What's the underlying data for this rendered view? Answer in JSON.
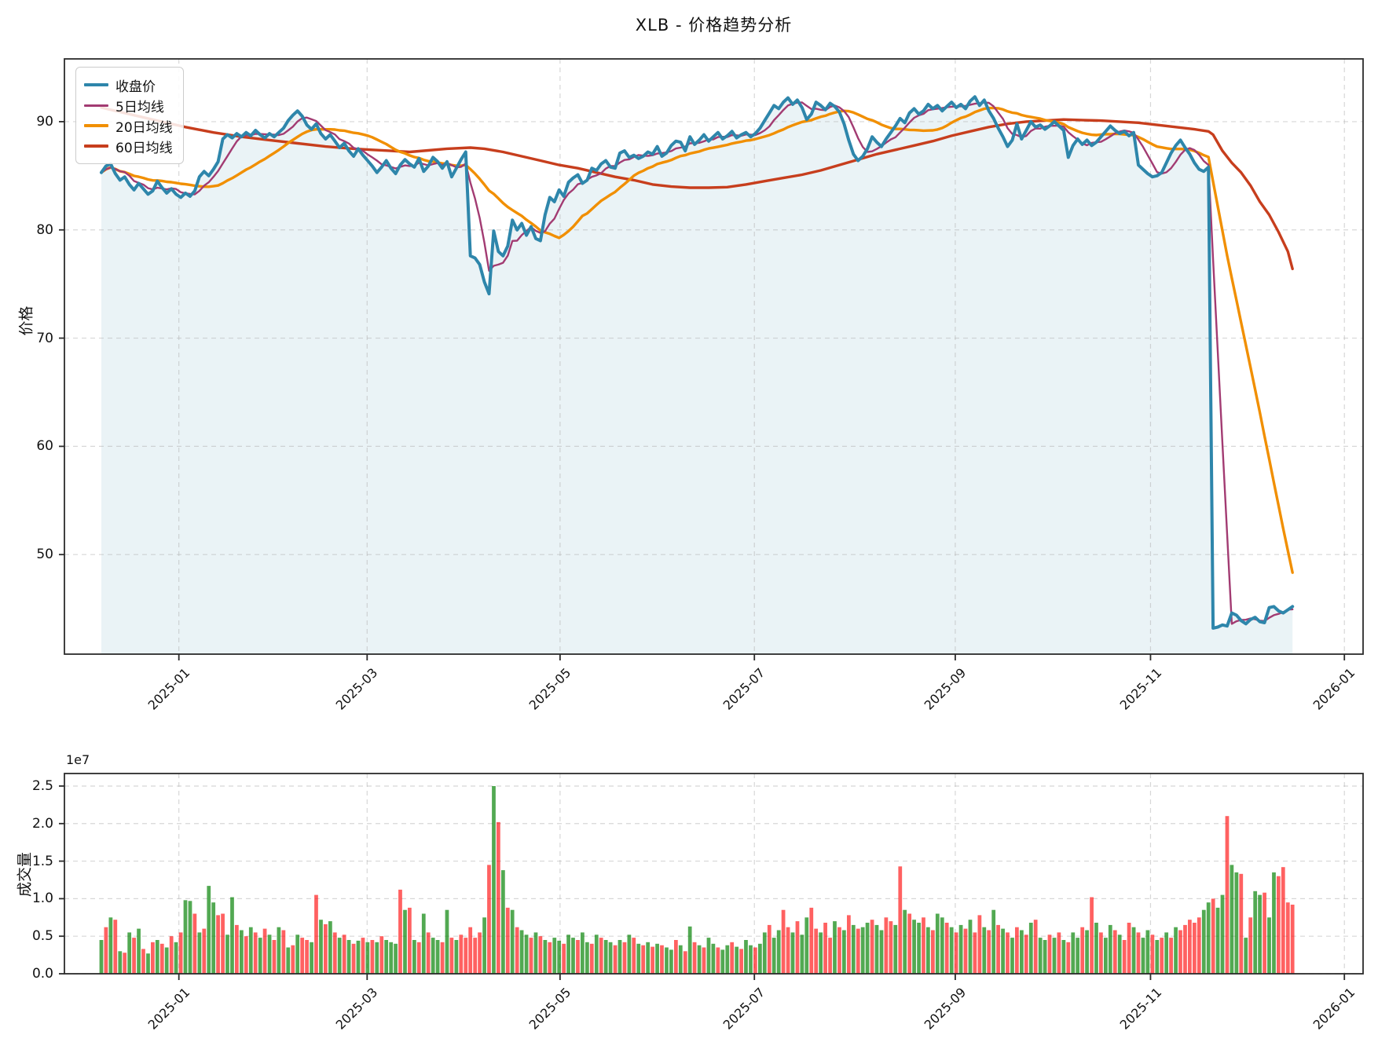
{
  "title": "XLB - 价格趋势分析",
  "price_panel": {
    "ylabel": "价格",
    "ytick_labels": [
      "50",
      "60",
      "70",
      "80",
      "90"
    ],
    "ytick_values": [
      50,
      60,
      70,
      80,
      90
    ],
    "legend": [
      {
        "label": "收盘价",
        "color": "#2E86AB",
        "line_width": 4
      },
      {
        "label": "5日均线",
        "color": "#A23B72",
        "line_width": 2.4
      },
      {
        "label": "20日均线",
        "color": "#F18F01",
        "line_width": 3.4
      },
      {
        "label": "60日均线",
        "color": "#C73E1D",
        "line_width": 3.4
      }
    ]
  },
  "volume_panel": {
    "ylabel": "成交量",
    "offset_label": "1e7",
    "ytick_labels": [
      "0.0",
      "0.5",
      "1.0",
      "1.5",
      "2.0",
      "2.5"
    ],
    "ytick_values": [
      0,
      0.5,
      1.0,
      1.5,
      2.0,
      2.5
    ]
  },
  "x_axis": {
    "ticks": [
      {
        "label": "2025-01",
        "i": 16.6
      },
      {
        "label": "2025-03",
        "i": 56.9
      },
      {
        "label": "2025-05",
        "i": 98.2
      },
      {
        "label": "2025-07",
        "i": 139.8
      },
      {
        "label": "2025-09",
        "i": 182.8
      },
      {
        "label": "2025-11",
        "i": 224.6
      },
      {
        "label": "2026-01",
        "i": 266.1
      }
    ]
  },
  "chart_data": {
    "type": "line+bar",
    "title": "XLB - 价格趋势分析",
    "x_unit": "trading_day_index",
    "xlim": [
      -7.9,
      270.1
    ],
    "price_ylim": [
      40.8,
      95.8
    ],
    "volume_ylim_1e7": [
      0,
      2.667
    ],
    "grid": "dashed",
    "legend_position": "upper-left",
    "fill_under_close": "rgba(46,134,171,0.10)",
    "volume_colors": {
      "up": "rgba(0,128,0,0.68)",
      "down": "rgba(255,0,0,0.62)"
    },
    "close": [
      85.3,
      85.9,
      86.1,
      85.2,
      84.6,
      84.9,
      84.2,
      83.7,
      84.3,
      83.8,
      83.3,
      83.6,
      84.5,
      83.9,
      83.4,
      83.8,
      83.3,
      83.0,
      83.4,
      83.1,
      83.6,
      84.9,
      85.4,
      85.0,
      85.6,
      86.3,
      88.4,
      88.8,
      88.5,
      88.9,
      88.6,
      89.0,
      88.7,
      89.2,
      88.8,
      88.5,
      88.9,
      88.6,
      89.0,
      89.4,
      90.1,
      90.6,
      91.0,
      90.5,
      89.7,
      89.3,
      89.8,
      88.9,
      88.4,
      88.8,
      88.2,
      87.6,
      88.0,
      87.3,
      86.8,
      87.5,
      86.9,
      86.4,
      85.9,
      85.3,
      85.8,
      86.4,
      85.7,
      85.2,
      86.0,
      86.5,
      86.1,
      85.8,
      86.6,
      85.4,
      85.9,
      86.7,
      86.3,
      85.7,
      86.3,
      84.9,
      85.7,
      86.5,
      87.2,
      77.6,
      77.4,
      76.8,
      75.2,
      74.1,
      79.9,
      78.0,
      77.6,
      78.5,
      80.9,
      80.0,
      80.6,
      79.5,
      80.3,
      79.2,
      79.0,
      81.4,
      83.0,
      82.6,
      83.7,
      83.1,
      84.4,
      84.8,
      85.1,
      84.3,
      84.6,
      85.7,
      85.5,
      86.1,
      86.4,
      85.8,
      85.7,
      87.1,
      87.3,
      86.7,
      86.9,
      86.6,
      86.8,
      87.2,
      87.0,
      87.7,
      86.8,
      87.1,
      87.8,
      88.2,
      88.1,
      87.3,
      88.6,
      87.9,
      88.3,
      88.8,
      88.2,
      88.6,
      89.0,
      88.4,
      88.7,
      89.1,
      88.5,
      88.8,
      89.0,
      88.6,
      88.9,
      89.4,
      90.1,
      90.8,
      91.5,
      91.2,
      91.8,
      92.2,
      91.6,
      92.0,
      91.3,
      90.2,
      90.7,
      91.8,
      91.5,
      91.1,
      91.7,
      91.4,
      90.9,
      89.8,
      88.3,
      87.0,
      86.4,
      86.8,
      87.5,
      88.6,
      88.1,
      87.7,
      88.4,
      89.0,
      89.6,
      90.3,
      89.9,
      90.8,
      91.2,
      90.7,
      91.0,
      91.6,
      91.2,
      91.5,
      91.0,
      91.4,
      91.8,
      91.3,
      91.6,
      91.2,
      91.9,
      92.3,
      91.5,
      92.0,
      91.0,
      90.3,
      89.4,
      88.6,
      87.7,
      88.3,
      89.8,
      88.4,
      89.2,
      90.0,
      89.5,
      89.7,
      89.3,
      89.6,
      90.0,
      89.6,
      89.2,
      86.7,
      87.8,
      88.4,
      87.9,
      88.3,
      87.8,
      88.1,
      88.6,
      89.1,
      89.6,
      89.2,
      88.9,
      89.1,
      88.7,
      89.0,
      86.0,
      85.6,
      85.2,
      84.9,
      85.0,
      85.3,
      86.2,
      87.1,
      87.8,
      88.3,
      87.6,
      87.0,
      86.2,
      85.6,
      85.4,
      85.8,
      43.2,
      43.3,
      43.5,
      43.4,
      44.6,
      44.4,
      43.9,
      43.6,
      44.0,
      44.2,
      43.8,
      43.7,
      45.1,
      45.2,
      44.8,
      44.6,
      44.9,
      45.2
    ],
    "ma5_window": 5,
    "ma20_window": 20,
    "ma60_points": [
      [
        0,
        91.3
      ],
      [
        6,
        90.7
      ],
      [
        12,
        90.1
      ],
      [
        18,
        89.5
      ],
      [
        24,
        89.0
      ],
      [
        30,
        88.6
      ],
      [
        36,
        88.3
      ],
      [
        42,
        88.0
      ],
      [
        48,
        87.7
      ],
      [
        54,
        87.5
      ],
      [
        58,
        87.4
      ],
      [
        62,
        87.3
      ],
      [
        66,
        87.2
      ],
      [
        70,
        87.35
      ],
      [
        74,
        87.5
      ],
      [
        79,
        87.6
      ],
      [
        82,
        87.5
      ],
      [
        86,
        87.2
      ],
      [
        90,
        86.8
      ],
      [
        94,
        86.4
      ],
      [
        98,
        86.0
      ],
      [
        102,
        85.7
      ],
      [
        106,
        85.3
      ],
      [
        110,
        84.9
      ],
      [
        114,
        84.6
      ],
      [
        118,
        84.2
      ],
      [
        122,
        84.0
      ],
      [
        126,
        83.9
      ],
      [
        130,
        83.9
      ],
      [
        134,
        83.95
      ],
      [
        138,
        84.2
      ],
      [
        142,
        84.5
      ],
      [
        146,
        84.8
      ],
      [
        150,
        85.1
      ],
      [
        154,
        85.5
      ],
      [
        158,
        86.0
      ],
      [
        162,
        86.5
      ],
      [
        166,
        87.0
      ],
      [
        170,
        87.4
      ],
      [
        174,
        87.8
      ],
      [
        178,
        88.2
      ],
      [
        182,
        88.7
      ],
      [
        186,
        89.1
      ],
      [
        190,
        89.5
      ],
      [
        194,
        89.8
      ],
      [
        198,
        90.0
      ],
      [
        202,
        90.1
      ],
      [
        206,
        90.2
      ],
      [
        210,
        90.15
      ],
      [
        214,
        90.1
      ],
      [
        218,
        90.0
      ],
      [
        222,
        89.9
      ],
      [
        226,
        89.7
      ],
      [
        230,
        89.5
      ],
      [
        234,
        89.3
      ],
      [
        237,
        89.1
      ],
      [
        238,
        88.8
      ],
      [
        240,
        87.3
      ],
      [
        242,
        86.2
      ],
      [
        244,
        85.3
      ],
      [
        246,
        84.1
      ],
      [
        248,
        82.6
      ],
      [
        250,
        81.4
      ],
      [
        252,
        79.8
      ],
      [
        254,
        78.0
      ],
      [
        255,
        76.4
      ]
    ],
    "volume_1e7": [
      0.45,
      0.62,
      0.75,
      0.72,
      0.3,
      0.28,
      0.55,
      0.48,
      0.6,
      0.33,
      0.27,
      0.42,
      0.45,
      0.4,
      0.35,
      0.5,
      0.42,
      0.55,
      0.98,
      0.97,
      0.8,
      0.55,
      0.6,
      1.17,
      0.95,
      0.78,
      0.8,
      0.52,
      1.02,
      0.65,
      0.58,
      0.5,
      0.62,
      0.55,
      0.48,
      0.6,
      0.52,
      0.45,
      0.62,
      0.58,
      0.35,
      0.38,
      0.52,
      0.48,
      0.45,
      0.42,
      1.05,
      0.72,
      0.66,
      0.7,
      0.55,
      0.48,
      0.52,
      0.45,
      0.4,
      0.44,
      0.48,
      0.42,
      0.45,
      0.42,
      0.5,
      0.45,
      0.42,
      0.4,
      1.12,
      0.85,
      0.88,
      0.45,
      0.42,
      0.8,
      0.55,
      0.48,
      0.45,
      0.42,
      0.85,
      0.48,
      0.45,
      0.52,
      0.48,
      0.62,
      0.48,
      0.55,
      0.75,
      1.45,
      2.5,
      2.02,
      1.38,
      0.88,
      0.85,
      0.62,
      0.58,
      0.52,
      0.48,
      0.55,
      0.5,
      0.45,
      0.42,
      0.48,
      0.44,
      0.4,
      0.52,
      0.48,
      0.45,
      0.55,
      0.42,
      0.4,
      0.52,
      0.48,
      0.45,
      0.42,
      0.38,
      0.45,
      0.42,
      0.52,
      0.48,
      0.4,
      0.38,
      0.42,
      0.36,
      0.4,
      0.38,
      0.35,
      0.32,
      0.45,
      0.38,
      0.3,
      0.63,
      0.42,
      0.38,
      0.35,
      0.48,
      0.4,
      0.35,
      0.32,
      0.38,
      0.42,
      0.36,
      0.33,
      0.45,
      0.38,
      0.35,
      0.4,
      0.55,
      0.65,
      0.48,
      0.58,
      0.85,
      0.62,
      0.55,
      0.7,
      0.52,
      0.75,
      0.88,
      0.6,
      0.55,
      0.68,
      0.48,
      0.7,
      0.62,
      0.58,
      0.78,
      0.65,
      0.6,
      0.62,
      0.68,
      0.72,
      0.65,
      0.58,
      0.75,
      0.7,
      0.65,
      1.43,
      0.85,
      0.8,
      0.72,
      0.68,
      0.75,
      0.62,
      0.58,
      0.8,
      0.75,
      0.68,
      0.62,
      0.55,
      0.65,
      0.6,
      0.72,
      0.55,
      0.78,
      0.62,
      0.58,
      0.85,
      0.65,
      0.6,
      0.55,
      0.48,
      0.62,
      0.58,
      0.52,
      0.68,
      0.72,
      0.48,
      0.45,
      0.52,
      0.48,
      0.55,
      0.45,
      0.42,
      0.55,
      0.48,
      0.62,
      0.58,
      1.02,
      0.68,
      0.55,
      0.48,
      0.65,
      0.58,
      0.52,
      0.45,
      0.68,
      0.62,
      0.55,
      0.48,
      0.58,
      0.52,
      0.45,
      0.48,
      0.55,
      0.48,
      0.62,
      0.58,
      0.65,
      0.72,
      0.68,
      0.75,
      0.85,
      0.95,
      1.0,
      0.88,
      1.05,
      2.1,
      1.45,
      1.35,
      1.33,
      0.48,
      0.75,
      1.1,
      1.05,
      1.08,
      0.75,
      1.35,
      1.3,
      1.42,
      0.95,
      0.92
    ],
    "volume_updown": "grgrgrgrgrgrgrgrgrggrgrggrrggrgrgrgrgrgrgrgrrgrgrgrgrgrgrgrgrgggrgrgrgrggrgrgrrrrrgrgrgrgrggrgrgrggrggrggrgrggrgrgrgrgrgrggrgrgrgrggrggrgrggrggrggrrgrggrrgrrgrgrgrggrggrrgrgrggrgrggrgrgrgrrgrgrgrgrgrgrggrgrgrggrgrgrggrgrrgrggrgrgrgrrrrrggrggrggrgrggrgg"
  }
}
